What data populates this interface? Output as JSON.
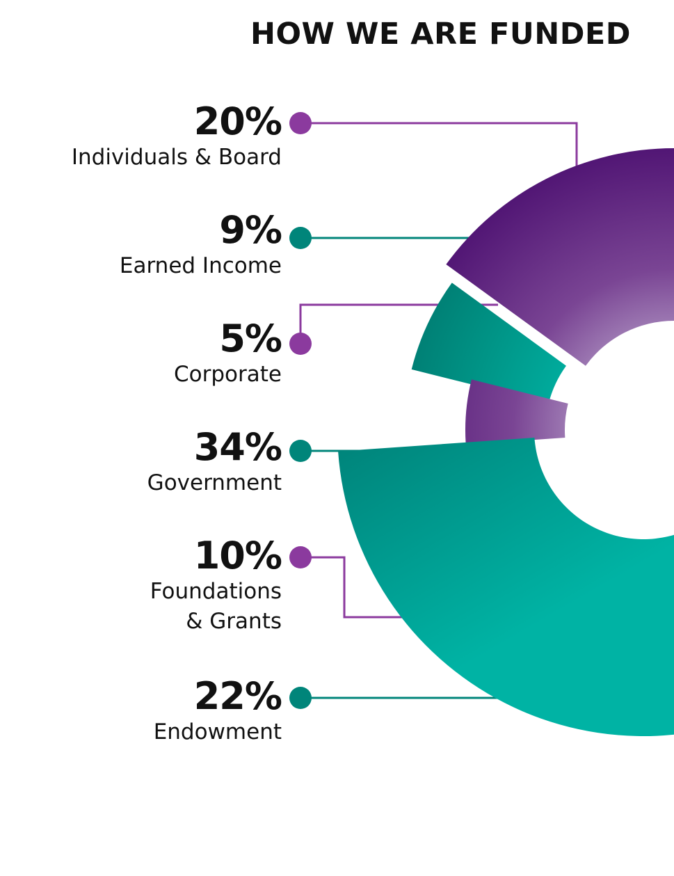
{
  "chart_data": {
    "type": "pie",
    "title": "HOW WE ARE FUNDED",
    "slices": [
      {
        "label_lines": [
          "Individuals & Board"
        ],
        "value": 20,
        "value_label": "20%",
        "color": "#6a2784"
      },
      {
        "label_lines": [
          "Earned Income"
        ],
        "value": 9,
        "value_label": "9%",
        "color": "#00857a"
      },
      {
        "label_lines": [
          "Corporate"
        ],
        "value": 5,
        "value_label": "5%",
        "color": "#6a2784"
      },
      {
        "label_lines": [
          "Government"
        ],
        "value": 34,
        "value_label": "34%",
        "color": "#00857a"
      },
      {
        "label_lines": [
          "Foundations",
          "& Grants"
        ],
        "value": 10,
        "value_label": "10%",
        "color": "#6a2784"
      },
      {
        "label_lines": [
          "Endowment"
        ],
        "value": 22,
        "value_label": "22%",
        "color": "#00857a"
      }
    ]
  },
  "colors": {
    "purple_dark": "#4a1070",
    "purple_mid": "#6a2784",
    "purple_light": "#9b7cb0",
    "purple_dot": "#8b3a9e",
    "teal_dark": "#00726b",
    "teal_mid": "#00857a",
    "teal_light": "#00b3a4",
    "teal_dot": "#00857a"
  }
}
